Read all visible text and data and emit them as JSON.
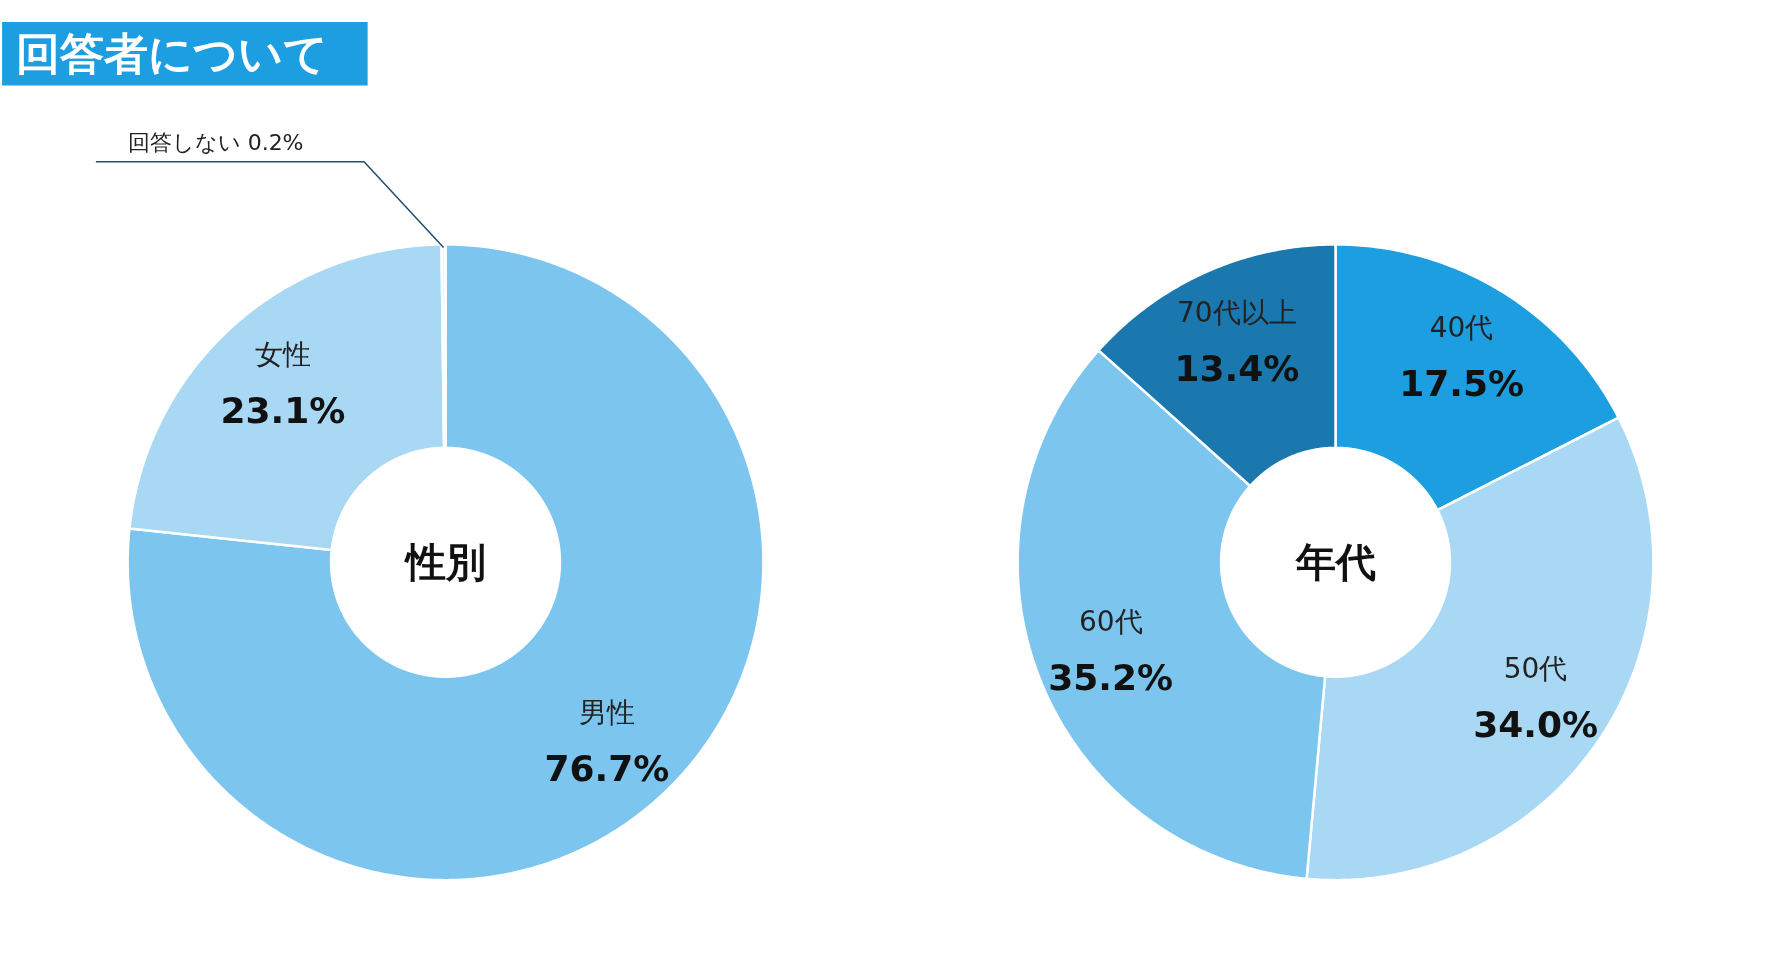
{
  "chart_data": [
    {
      "type": "donut",
      "title": "性別",
      "annotations": [
        "回答者について"
      ],
      "categories": [
        "男性",
        "女性",
        "回答しない"
      ],
      "values": [
        76.7,
        23.1,
        0.2
      ],
      "colors": [
        "#7bc5ee",
        "#a8d8f4",
        "#e8f5fc"
      ],
      "value_labels": [
        "76.7%",
        "23.1%",
        "0.2%"
      ]
    },
    {
      "type": "donut",
      "title": "年代",
      "categories": [
        "40代",
        "50代",
        "60代",
        "70代以上"
      ],
      "values": [
        17.5,
        34.0,
        35.2,
        13.4
      ],
      "colors": [
        "#1c9ee0",
        "#a8d8f4",
        "#7bc5ee",
        "#1a78ae"
      ],
      "value_labels": [
        "17.5%",
        "34.0%",
        "35.2%",
        "13.4%"
      ]
    }
  ]
}
